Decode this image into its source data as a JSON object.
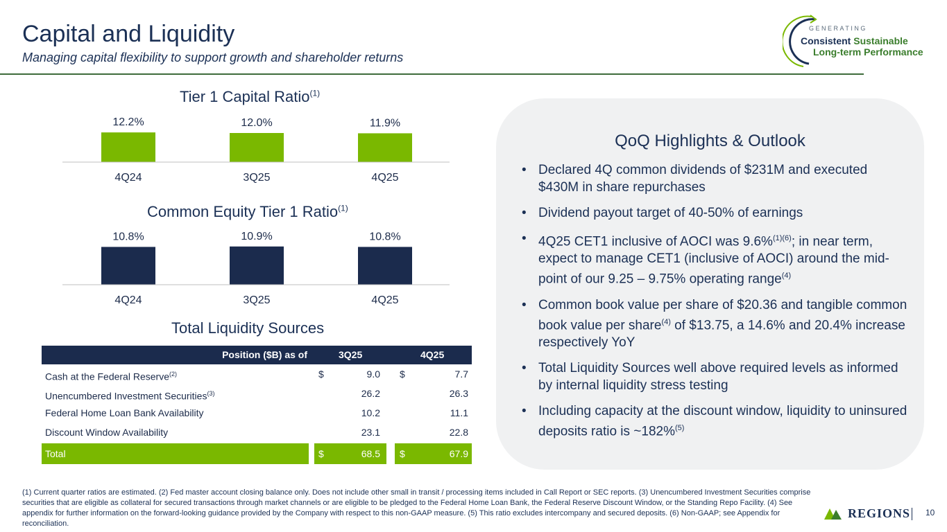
{
  "header": {
    "title": "Capital and Liquidity",
    "subtitle": "Managing capital flexibility to support growth and shareholder returns"
  },
  "logo": {
    "line1": "GENERATING",
    "line2a": "Consistent",
    "line2b": "Sustainable",
    "line3": "Long-term Performance"
  },
  "chart_data": [
    {
      "type": "bar",
      "title": "Tier 1 Capital Ratio",
      "title_sup": "(1)",
      "categories": [
        "4Q24",
        "3Q25",
        "4Q25"
      ],
      "values": [
        12.2,
        12.0,
        11.9
      ],
      "labels": [
        "12.2%",
        "12.0%",
        "11.9%"
      ],
      "color": "#7ab800"
    },
    {
      "type": "bar",
      "title": "Common Equity Tier 1 Ratio",
      "title_sup": "(1)",
      "categories": [
        "4Q24",
        "3Q25",
        "4Q25"
      ],
      "values": [
        10.8,
        10.9,
        10.8
      ],
      "labels": [
        "10.8%",
        "10.9%",
        "10.8%"
      ],
      "color": "#1b2b4d"
    }
  ],
  "liquidity": {
    "title": "Total Liquidity Sources",
    "header": {
      "label": "Position ($B) as of",
      "col1": "3Q25",
      "col2": "4Q25"
    },
    "rows": [
      {
        "label": "Cash at the Federal Reserve",
        "sup": "(2)",
        "d1": "$",
        "v1": "9.0",
        "d2": "$",
        "v2": "7.7"
      },
      {
        "label": "Unencumbered Investment Securities",
        "sup": "(3)",
        "d1": "",
        "v1": "26.2",
        "d2": "",
        "v2": "26.3"
      },
      {
        "label": "Federal Home Loan Bank Availability",
        "sup": "",
        "d1": "",
        "v1": "10.2",
        "d2": "",
        "v2": "11.1"
      },
      {
        "label": "Discount Window Availability",
        "sup": "",
        "d1": "",
        "v1": "23.1",
        "d2": "",
        "v2": "22.8"
      }
    ],
    "total": {
      "label": "Total",
      "d1": "$",
      "v1": "68.5",
      "d2": "$",
      "v2": "67.9"
    }
  },
  "highlights": {
    "title": "QoQ Highlights & Outlook",
    "b1": "Declared 4Q common dividends of $231M and executed $430M in share repurchases",
    "b2": "Dividend payout target of 40-50% of earnings",
    "b3a": "4Q25 CET1 inclusive of AOCI was 9.6%",
    "b3s": "(1)(6)",
    "b3b": "; in near term, expect to manage CET1 (inclusive of AOCI) around the mid-point of our 9.25 – 9.75% operating range",
    "b3s2": "(4)",
    "b4a": "Common book value per share of $20.36 and tangible common book value per share",
    "b4s": "(4)",
    "b4b": " of $13.75, a 14.6% and 20.4% increase respectively YoY",
    "b5": "Total Liquidity Sources well above required levels as informed by internal liquidity stress testing",
    "b6a": "Including capacity at the discount window, liquidity to uninsured deposits ratio is ~182%",
    "b6s": "(5)"
  },
  "footnote": "(1) Current quarter ratios are estimated.  (2) Fed master account closing balance only. Does not include other small in transit / processing items included in Call Report or SEC reports. (3) Unencumbered Investment Securities comprise securities that are eligible as collateral for secured transactions through market channels or are eligible to be pledged to the Federal Home Loan Bank, the Federal Reserve Discount Window, or the Standing Repo Facility. (4) See appendix for further information on the forward-looking guidance provided by the Company with respect to this non-GAAP measure. (5) This ratio excludes intercompany and secured deposits. (6) Non-GAAP; see Appendix for reconciliation.",
  "brand": {
    "name": "REGIONS",
    "page": "10"
  }
}
